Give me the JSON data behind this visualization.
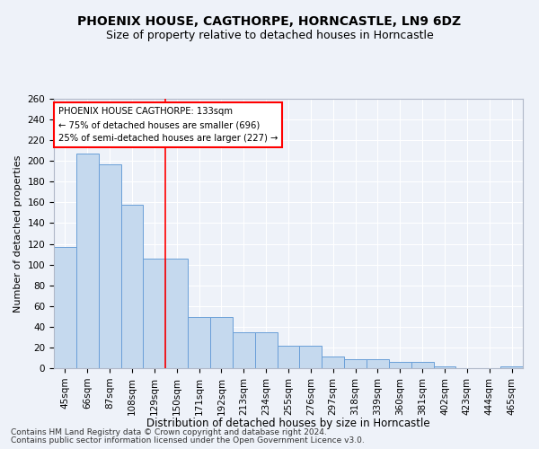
{
  "title": "PHOENIX HOUSE, CAGTHORPE, HORNCASTLE, LN9 6DZ",
  "subtitle": "Size of property relative to detached houses in Horncastle",
  "xlabel": "Distribution of detached houses by size in Horncastle",
  "ylabel": "Number of detached properties",
  "bar_labels": [
    "45sqm",
    "66sqm",
    "87sqm",
    "108sqm",
    "129sqm",
    "150sqm",
    "171sqm",
    "192sqm",
    "213sqm",
    "234sqm",
    "255sqm",
    "276sqm",
    "297sqm",
    "318sqm",
    "339sqm",
    "360sqm",
    "381sqm",
    "402sqm",
    "423sqm",
    "444sqm",
    "465sqm"
  ],
  "bar_values": [
    117,
    207,
    197,
    158,
    106,
    106,
    49,
    49,
    35,
    35,
    22,
    22,
    11,
    9,
    9,
    6,
    6,
    2,
    0,
    0,
    2
  ],
  "bar_color": "#c5d9ee",
  "bar_edge_color": "#6a9fd8",
  "red_line_x": 4.5,
  "annotation_title": "PHOENIX HOUSE CAGTHORPE: 133sqm",
  "annotation_line1": "← 75% of detached houses are smaller (696)",
  "annotation_line2": "25% of semi-detached houses are larger (227) →",
  "ylim": [
    0,
    260
  ],
  "yticks": [
    0,
    20,
    40,
    60,
    80,
    100,
    120,
    140,
    160,
    180,
    200,
    220,
    240,
    260
  ],
  "footer1": "Contains HM Land Registry data © Crown copyright and database right 2024.",
  "footer2": "Contains public sector information licensed under the Open Government Licence v3.0.",
  "bg_color": "#eef2f9",
  "plot_bg_color": "#eef2f9",
  "grid_color": "#ffffff",
  "title_fontsize": 10,
  "subtitle_fontsize": 9,
  "ylabel_fontsize": 8,
  "xlabel_fontsize": 8.5,
  "tick_fontsize": 7.5,
  "footer_fontsize": 6.5
}
